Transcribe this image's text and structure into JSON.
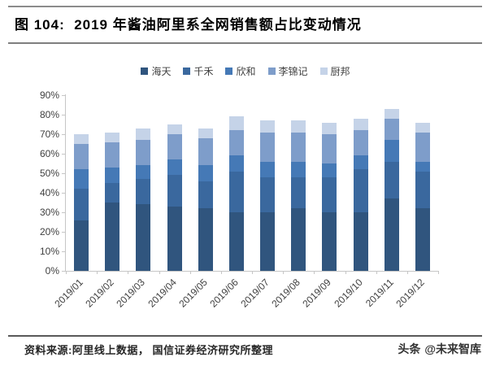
{
  "title": "图 104:  2019 年酱油阿里系全网销售额占比变动情况",
  "footer": {
    "source": "资料来源:阿里线上数据， 国信证券经济研究所整理",
    "brand": "头条",
    "handle": "@未来智库"
  },
  "colors": {
    "axis": "#c6c6c6",
    "text": "#3f3f3f"
  },
  "chart_data": {
    "type": "bar",
    "subtype": "stacked",
    "title": "",
    "xlabel": "",
    "ylabel": "",
    "ylim": [
      0,
      90
    ],
    "y_ticks": [
      "0%",
      "10%",
      "20%",
      "30%",
      "40%",
      "50%",
      "60%",
      "70%",
      "80%",
      "90%"
    ],
    "grid": false,
    "legend_position": "top",
    "categories": [
      "2019/01",
      "2019/02",
      "2019/03",
      "2019/04",
      "2019/05",
      "2019/06",
      "2019/07",
      "2019/08",
      "2019/09",
      "2019/10",
      "2019/11",
      "2019/12"
    ],
    "series": [
      {
        "name": "海天",
        "color": "#30557E",
        "values": [
          26,
          35,
          34,
          33,
          32,
          30,
          30,
          32,
          30,
          30,
          37,
          32
        ]
      },
      {
        "name": "千禾",
        "color": "#3A689E",
        "values": [
          16,
          10,
          13,
          16,
          14,
          21,
          18,
          16,
          18,
          22,
          19,
          19
        ]
      },
      {
        "name": "欣和",
        "color": "#4579B6",
        "values": [
          10,
          8,
          7,
          8,
          8,
          8,
          8,
          8,
          7,
          7,
          11,
          5
        ]
      },
      {
        "name": "李锦记",
        "color": "#7E9DCA",
        "values": [
          13,
          13,
          13,
          13,
          14,
          13,
          15,
          15,
          15,
          13,
          11,
          15
        ]
      },
      {
        "name": "厨邦",
        "color": "#C5D3E8",
        "values": [
          5,
          5,
          6,
          5,
          5,
          7,
          6,
          6,
          6,
          6,
          5,
          5
        ]
      }
    ],
    "totals": [
      70,
      71,
      73,
      75,
      73,
      79,
      77,
      77,
      76,
      78,
      83,
      76
    ]
  }
}
